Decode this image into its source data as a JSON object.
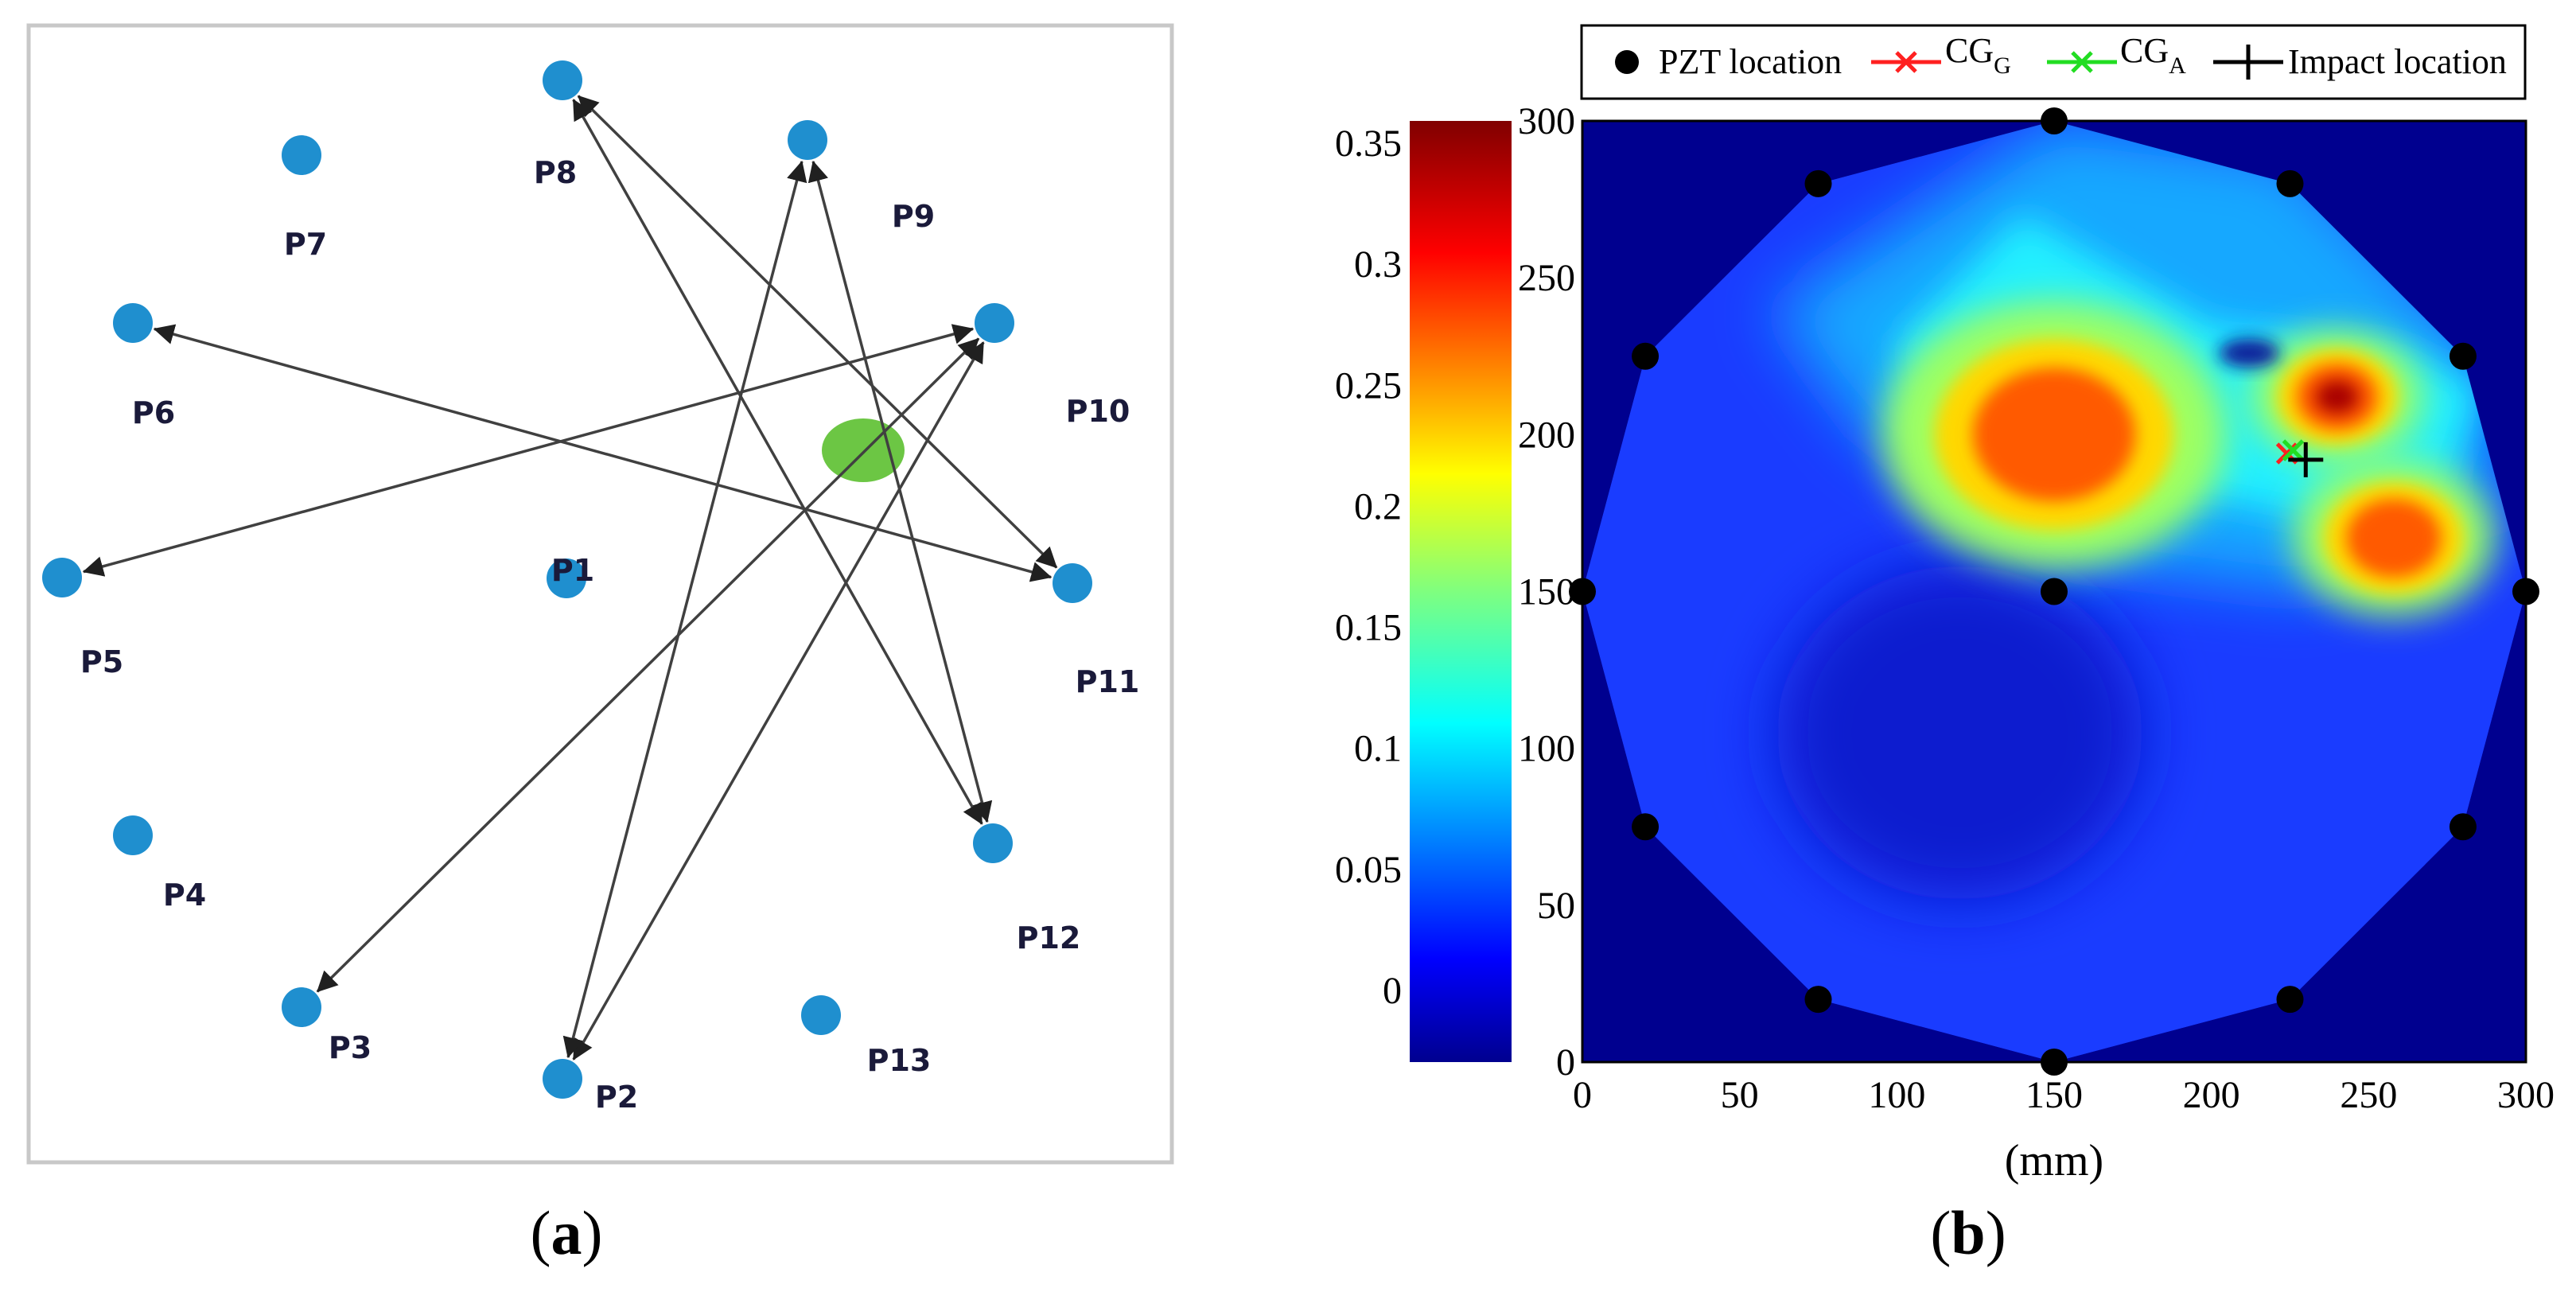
{
  "panel_a": {
    "caption": {
      "open": "(",
      "letter": "a",
      "close": ")"
    },
    "nodes": [
      {
        "id": "P1",
        "label": "P1"
      },
      {
        "id": "P2",
        "label": "P2"
      },
      {
        "id": "P3",
        "label": "P3"
      },
      {
        "id": "P4",
        "label": "P4"
      },
      {
        "id": "P5",
        "label": "P5"
      },
      {
        "id": "P6",
        "label": "P6"
      },
      {
        "id": "P7",
        "label": "P7"
      },
      {
        "id": "P8",
        "label": "P8"
      },
      {
        "id": "P9",
        "label": "P9"
      },
      {
        "id": "P10",
        "label": "P10"
      },
      {
        "id": "P11",
        "label": "P11"
      },
      {
        "id": "P12",
        "label": "P12"
      },
      {
        "id": "P13",
        "label": "P13"
      }
    ],
    "edges": [
      {
        "from": "P6",
        "to": "P11"
      },
      {
        "from": "P5",
        "to": "P10"
      },
      {
        "from": "P3",
        "to": "P10"
      },
      {
        "from": "P2",
        "to": "P10"
      },
      {
        "from": "P2",
        "to": "P9"
      },
      {
        "from": "P12",
        "to": "P9"
      },
      {
        "from": "P12",
        "to": "P8"
      },
      {
        "from": "P11",
        "to": "P8"
      }
    ],
    "node_color": "#1f8fcf",
    "impact_marker_color": "#6cc644",
    "edge_color": "#404040"
  },
  "panel_b": {
    "caption": {
      "open": "(",
      "letter": "b",
      "close": ")"
    },
    "legend": [
      {
        "name": "pzt-location",
        "label": "PZT location",
        "color": "#000000"
      },
      {
        "name": "cg-g",
        "label": "CG",
        "subscript": "G",
        "color": "#ff2020"
      },
      {
        "name": "cg-a",
        "label": "CG",
        "subscript": "A",
        "color": "#22dd22"
      },
      {
        "name": "impact-location",
        "label": "Impact location",
        "color": "#000000"
      }
    ],
    "xlabel": "(mm)",
    "x_ticks": [
      "0",
      "50",
      "100",
      "150",
      "200",
      "250",
      "300"
    ],
    "y_ticks": [
      "0",
      "50",
      "100",
      "150",
      "200",
      "250",
      "300"
    ],
    "colorbar_ticks": [
      "0",
      "0.05",
      "0.1",
      "0.15",
      "0.2",
      "0.25",
      "0.3",
      "0.35"
    ],
    "colormap": "jet",
    "background_color": "#00008f"
  },
  "chart_data": {
    "type": "heatmap",
    "xlabel": "(mm)",
    "ylabel": "",
    "xlim": [
      0,
      300
    ],
    "ylim": [
      0,
      300
    ],
    "colorbar_range": [
      0,
      0.36
    ],
    "colorbar_ticks": [
      0,
      0.05,
      0.1,
      0.15,
      0.2,
      0.25,
      0.3,
      0.35
    ],
    "pzt_locations": [
      [
        150,
        300
      ],
      [
        225,
        280
      ],
      [
        280,
        225
      ],
      [
        300,
        150
      ],
      [
        280,
        75
      ],
      [
        225,
        20
      ],
      [
        150,
        0
      ],
      [
        75,
        20
      ],
      [
        20,
        75
      ],
      [
        0,
        150
      ],
      [
        20,
        225
      ],
      [
        75,
        280
      ],
      [
        150,
        150
      ]
    ],
    "cg_g": [
      224,
      194
    ],
    "cg_a": [
      226,
      195
    ],
    "impact_location": [
      230,
      192
    ],
    "hotspots": [
      {
        "x": 150,
        "y": 200,
        "value": 0.28
      },
      {
        "x": 240,
        "y": 212,
        "value": 0.34
      },
      {
        "x": 258,
        "y": 167,
        "value": 0.3
      }
    ],
    "legend": [
      "PZT location",
      "CG_G",
      "CG_A",
      "Impact location"
    ]
  }
}
